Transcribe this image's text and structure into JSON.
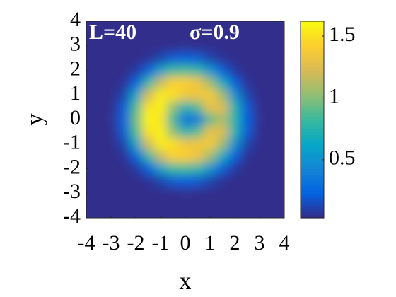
{
  "chart_data": {
    "type": "heatmap",
    "annotations": [
      "L=40",
      "σ=0.9"
    ],
    "x_label": "x",
    "y_label": "y",
    "x": [
      -4,
      -3.5,
      -3,
      -2.5,
      -2,
      -1.5,
      -1,
      -0.5,
      0,
      0.5,
      1,
      1.5,
      2,
      2.5,
      3,
      3.5,
      4
    ],
    "y": [
      4,
      3.5,
      3,
      2.5,
      2,
      1.5,
      1,
      0.5,
      0,
      -0.5,
      -1,
      -1.5,
      -2,
      -2.5,
      -3,
      -3.5,
      -4
    ],
    "z": [
      [
        0.04,
        0.04,
        0.04,
        0.04,
        0.04,
        0.04,
        0.04,
        0.04,
        0.04,
        0.04,
        0.04,
        0.04,
        0.04,
        0.04,
        0.04,
        0.04,
        0.04
      ],
      [
        0.04,
        0.04,
        0.04,
        0.04,
        0.04,
        0.04,
        0.04,
        0.04,
        0.04,
        0.04,
        0.04,
        0.04,
        0.04,
        0.04,
        0.04,
        0.04,
        0.04
      ],
      [
        0.04,
        0.04,
        0.04,
        0.04,
        0.04,
        0.04,
        0.04,
        0.04,
        0.05,
        0.04,
        0.04,
        0.04,
        0.04,
        0.04,
        0.04,
        0.04,
        0.04
      ],
      [
        0.04,
        0.04,
        0.04,
        0.04,
        0.04,
        0.06,
        0.12,
        0.2,
        0.22,
        0.2,
        0.12,
        0.06,
        0.04,
        0.04,
        0.04,
        0.04,
        0.04
      ],
      [
        0.04,
        0.04,
        0.04,
        0.04,
        0.08,
        0.22,
        0.58,
        0.82,
        0.85,
        0.78,
        0.52,
        0.22,
        0.08,
        0.04,
        0.04,
        0.04,
        0.04
      ],
      [
        0.04,
        0.04,
        0.04,
        0.06,
        0.22,
        0.78,
        1.17,
        1.43,
        1.42,
        1.33,
        1.05,
        0.66,
        0.22,
        0.06,
        0.04,
        0.04,
        0.04
      ],
      [
        0.04,
        0.04,
        0.04,
        0.12,
        0.6,
        1.2,
        1.55,
        1.5,
        1.35,
        1.35,
        1.38,
        1.05,
        0.5,
        0.12,
        0.04,
        0.04,
        0.04
      ],
      [
        0.04,
        0.04,
        0.04,
        0.2,
        0.87,
        1.5,
        1.57,
        1.03,
        0.75,
        0.9,
        1.3,
        1.25,
        0.73,
        0.2,
        0.04,
        0.04,
        0.04
      ],
      [
        0.04,
        0.04,
        0.05,
        0.22,
        0.95,
        1.59,
        1.51,
        0.84,
        0.3,
        0.35,
        0.9,
        1.1,
        0.75,
        0.22,
        0.05,
        0.04,
        0.04
      ],
      [
        0.04,
        0.04,
        0.04,
        0.2,
        0.87,
        1.5,
        1.57,
        1.03,
        0.75,
        0.9,
        1.3,
        1.25,
        0.73,
        0.2,
        0.04,
        0.04,
        0.04
      ],
      [
        0.04,
        0.04,
        0.04,
        0.12,
        0.6,
        1.2,
        1.55,
        1.5,
        1.35,
        1.35,
        1.38,
        1.05,
        0.5,
        0.12,
        0.04,
        0.04,
        0.04
      ],
      [
        0.04,
        0.04,
        0.04,
        0.06,
        0.22,
        0.78,
        1.17,
        1.43,
        1.42,
        1.33,
        1.05,
        0.66,
        0.22,
        0.06,
        0.04,
        0.04,
        0.04
      ],
      [
        0.04,
        0.04,
        0.04,
        0.04,
        0.08,
        0.22,
        0.58,
        0.82,
        0.85,
        0.78,
        0.52,
        0.22,
        0.08,
        0.04,
        0.04,
        0.04,
        0.04
      ],
      [
        0.04,
        0.04,
        0.04,
        0.04,
        0.04,
        0.06,
        0.12,
        0.2,
        0.22,
        0.2,
        0.12,
        0.06,
        0.04,
        0.04,
        0.04,
        0.04,
        0.04
      ],
      [
        0.04,
        0.04,
        0.04,
        0.04,
        0.04,
        0.04,
        0.04,
        0.04,
        0.05,
        0.04,
        0.04,
        0.04,
        0.04,
        0.04,
        0.04,
        0.04,
        0.04
      ],
      [
        0.04,
        0.04,
        0.04,
        0.04,
        0.04,
        0.04,
        0.04,
        0.04,
        0.04,
        0.04,
        0.04,
        0.04,
        0.04,
        0.04,
        0.04,
        0.04,
        0.04
      ],
      [
        0.04,
        0.04,
        0.04,
        0.04,
        0.04,
        0.04,
        0.04,
        0.04,
        0.04,
        0.04,
        0.04,
        0.04,
        0.04,
        0.04,
        0.04,
        0.04,
        0.04
      ]
    ],
    "xlim": [
      -4,
      4
    ],
    "ylim": [
      -4,
      4
    ],
    "xticks": [
      -4,
      -3,
      -2,
      -1,
      0,
      1,
      2,
      3,
      4
    ],
    "yticks": [
      -4,
      -3,
      -2,
      -1,
      0,
      1,
      2,
      3,
      4
    ],
    "clim": [
      0.03,
      1.62
    ],
    "cticks": [
      0.5,
      1,
      1.5
    ],
    "colormap": "parula"
  }
}
